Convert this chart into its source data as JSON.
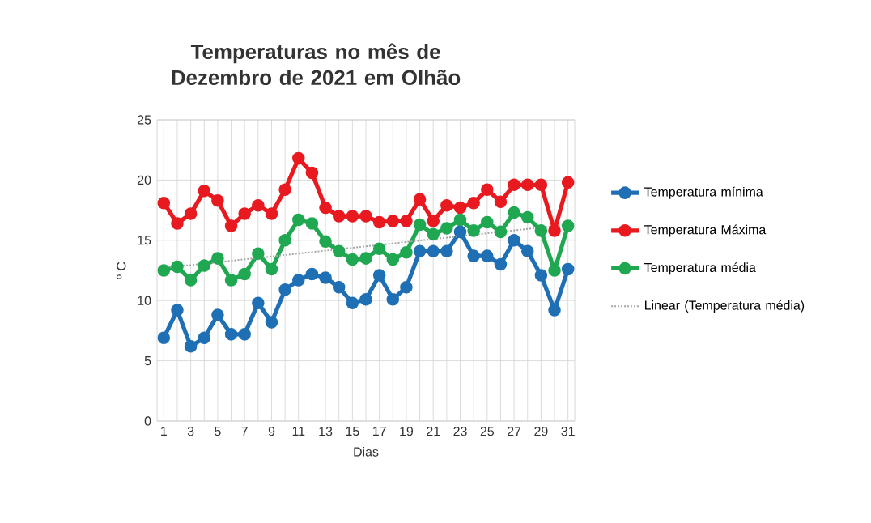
{
  "chart_data": {
    "type": "line",
    "title": "Temperaturas no mês de Dezembro de 2021 em Olhão",
    "xlabel": "Dias",
    "ylabel": "º C",
    "x": [
      1,
      2,
      3,
      4,
      5,
      6,
      7,
      8,
      9,
      10,
      11,
      12,
      13,
      14,
      15,
      16,
      17,
      18,
      19,
      20,
      21,
      22,
      23,
      24,
      25,
      26,
      27,
      28,
      29,
      30,
      31
    ],
    "series": [
      {
        "name": "Temperatura mínima",
        "color": "#1f6fb5",
        "values": [
          6.9,
          9.2,
          6.2,
          6.9,
          8.8,
          7.2,
          7.2,
          9.8,
          8.2,
          10.9,
          11.7,
          12.2,
          11.9,
          11.1,
          9.8,
          10.1,
          12.1,
          10.1,
          11.1,
          14.1,
          14.1,
          14.1,
          15.7,
          13.7,
          13.7,
          13.0,
          15.0,
          14.1,
          12.1,
          9.2,
          12.6
        ]
      },
      {
        "name": "Temperatura Máxima",
        "color": "#e8191f",
        "values": [
          18.1,
          16.4,
          17.2,
          19.1,
          18.3,
          16.2,
          17.2,
          17.9,
          17.2,
          19.2,
          21.8,
          20.6,
          17.7,
          17.0,
          17.0,
          17.0,
          16.5,
          16.6,
          16.6,
          18.4,
          16.6,
          17.9,
          17.7,
          18.1,
          19.2,
          18.2,
          19.6,
          19.6,
          19.6,
          15.8,
          19.8
        ]
      },
      {
        "name": "Temperatura média",
        "color": "#1fa851",
        "values": [
          12.5,
          12.8,
          11.7,
          12.9,
          13.5,
          11.7,
          12.2,
          13.9,
          12.6,
          15.0,
          16.7,
          16.4,
          14.9,
          14.1,
          13.4,
          13.5,
          14.3,
          13.4,
          14.0,
          16.3,
          15.5,
          16.0,
          16.7,
          15.8,
          16.5,
          15.7,
          17.3,
          16.9,
          15.8,
          12.5,
          16.2
        ]
      },
      {
        "name": "Linear (Temperatura média)",
        "type": "line",
        "color": "#a6a6a6",
        "marker": "none",
        "line_style": "dotted",
        "x": [
          1,
          31
        ],
        "values": [
          12.7,
          16.3
        ]
      }
    ],
    "marker": "circle",
    "line_style": "solid",
    "xlim": [
      0.5,
      31.5
    ],
    "ylim": [
      0,
      25
    ],
    "xticks": [
      1,
      {
        "value": 2,
        "label": null
      },
      3,
      {
        "value": 4,
        "label": null
      },
      5,
      {
        "value": 6,
        "label": null
      },
      7,
      {
        "value": 8,
        "label": null
      },
      9,
      {
        "value": 10,
        "label": null
      },
      11,
      {
        "value": 12,
        "label": null
      },
      13,
      {
        "value": 14,
        "label": null
      },
      15,
      {
        "value": 16,
        "label": null
      },
      17,
      {
        "value": 18,
        "label": null
      },
      19,
      {
        "value": 20,
        "label": null
      },
      21,
      {
        "value": 22,
        "label": null
      },
      23,
      {
        "value": 24,
        "label": null
      },
      25,
      {
        "value": 26,
        "label": null
      },
      27,
      {
        "value": 28,
        "label": null
      },
      29,
      {
        "value": 30,
        "label": null
      },
      31
    ],
    "yticks": [
      0,
      5,
      10,
      15,
      20,
      25
    ],
    "grid": true,
    "legend": "right"
  }
}
